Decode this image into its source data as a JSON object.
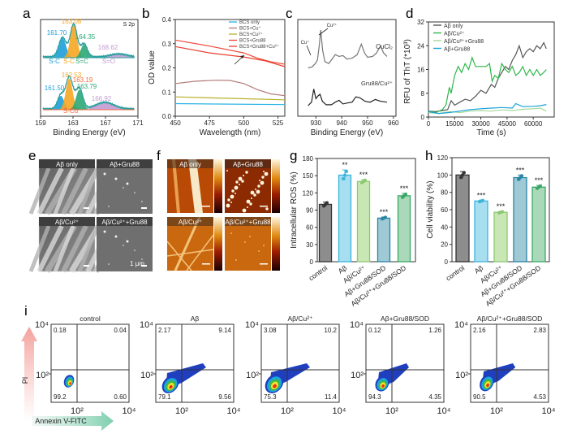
{
  "panel_labels": [
    "a",
    "b",
    "c",
    "d",
    "e",
    "f",
    "g",
    "h",
    "i"
  ],
  "chart_data": [
    {
      "panel": "a",
      "type": "line",
      "subtitle": "S 2p",
      "xlabel": "Binding Energy (eV)",
      "xlim": [
        159,
        171
      ],
      "xticks": [
        "159",
        "163",
        "167",
        "171"
      ],
      "envelope_color": "#2a9d9f",
      "spectra": [
        {
          "peaks": [
            {
              "center": 161.7,
              "label": "161.70",
              "species": "S-C",
              "color": "#1e9fd8",
              "height": 0.53,
              "width": 0.45
            },
            {
              "center": 163.08,
              "label": "163.08",
              "species": "S-C",
              "color": "#f5a623",
              "height": 0.9,
              "width": 0.42
            },
            {
              "center": 164.35,
              "label": "164.35",
              "species": "S=C",
              "color": "#2aa876",
              "height": 0.36,
              "width": 0.4
            },
            {
              "center": 168.62,
              "label": "168.62",
              "species": "S=O",
              "color": "#c39bd3",
              "height": 0.08,
              "width": 1.0
            }
          ]
        },
        {
          "peaks": [
            {
              "center": 161.5,
              "label": "161.50",
              "species": "",
              "color": "#1e9fd8",
              "height": 0.38,
              "width": 0.4
            },
            {
              "center": 162.53,
              "label": "162.53",
              "species": "",
              "color": "#f5a623",
              "height": 0.85,
              "width": 0.42
            },
            {
              "center": 163.19,
              "label": "163.19",
              "species": "S-Cu",
              "color": "#f26b3a",
              "height": 0.08,
              "width": 0.4
            },
            {
              "center": 163.79,
              "label": "163.79",
              "species": "",
              "color": "#2aa876",
              "height": 0.55,
              "width": 0.42
            },
            {
              "center": 166.92,
              "label": "166.92",
              "species": "",
              "color": "#c39bd3",
              "height": 0.18,
              "width": 1.1
            }
          ]
        }
      ]
    },
    {
      "panel": "b",
      "type": "line",
      "xlabel": "Wavelength (nm)",
      "ylabel": "OD value",
      "xlim": [
        450,
        530
      ],
      "ylim": [
        0,
        0.4
      ],
      "xticks": [
        450,
        475,
        500,
        525
      ],
      "yticks": [
        "0.0",
        "0.1",
        "0.2",
        "0.3",
        "0.4"
      ],
      "legend": "top-right",
      "series": [
        {
          "name": "BCS only",
          "color": "#2bb3e6",
          "x": [
            450,
            490,
            530
          ],
          "y": [
            0.052,
            0.05,
            0.048
          ]
        },
        {
          "name": "BCS+Cu⁺",
          "color": "#b47c78",
          "x": [
            450,
            465,
            480,
            490,
            500,
            510,
            520,
            530
          ],
          "y": [
            0.135,
            0.145,
            0.149,
            0.148,
            0.135,
            0.11,
            0.092,
            0.085
          ]
        },
        {
          "name": "BCS+Cu²⁺",
          "color": "#b8b02a",
          "x": [
            450,
            490,
            530
          ],
          "y": [
            0.08,
            0.074,
            0.068
          ]
        },
        {
          "name": "BCS+Gru88",
          "color": "#ef4a3a",
          "x": [
            450,
            475,
            500,
            510,
            520,
            530
          ],
          "y": [
            0.315,
            0.29,
            0.262,
            0.24,
            0.225,
            0.215
          ]
        },
        {
          "name": "BCS+Gru88+Cu²⁺",
          "color": "#e8402e",
          "x": [
            450,
            475,
            500,
            515,
            530
          ],
          "y": [
            0.288,
            0.262,
            0.245,
            0.23,
            0.205
          ]
        }
      ]
    },
    {
      "panel": "c",
      "type": "line",
      "xlabel": "Binding Energy (eV)",
      "xlim": [
        923,
        961
      ],
      "xticks": [
        930,
        940,
        950,
        960
      ],
      "annotations": [
        "Cu⁺",
        "Cu²⁺"
      ],
      "series": [
        {
          "name": "CuCl₂",
          "color": "#777777",
          "x": [
            927,
            928.5,
            929.8,
            930.6,
            931.3,
            931.9,
            932.6,
            933.5,
            935,
            936.5,
            937.5,
            939,
            940.5,
            942,
            944,
            946,
            947.6,
            948.8,
            950,
            952,
            953.5,
            955,
            956.2,
            957.5
          ],
          "y": [
            0.55,
            0.56,
            0.6,
            0.64,
            0.8,
            0.98,
            0.75,
            0.62,
            0.6,
            0.66,
            0.7,
            0.68,
            0.69,
            0.65,
            0.66,
            0.7,
            0.82,
            0.72,
            0.67,
            0.68,
            0.72,
            0.8,
            0.72,
            0.68
          ]
        },
        {
          "name": "Gru88/Cu²⁺",
          "color": "#222222",
          "x": [
            927,
            928.3,
            929.2,
            930,
            930.8,
            931.6,
            932.5,
            934,
            936,
            937.5,
            939,
            940.5,
            942,
            944,
            945.5,
            947,
            949,
            951,
            953,
            955,
            957.5
          ],
          "y": [
            0.12,
            0.16,
            0.31,
            0.2,
            0.23,
            0.25,
            0.17,
            0.13,
            0.13,
            0.16,
            0.18,
            0.14,
            0.15,
            0.16,
            0.22,
            0.21,
            0.17,
            0.16,
            0.19,
            0.17,
            0.16
          ]
        }
      ]
    },
    {
      "panel": "d",
      "type": "line",
      "xlabel": "Time (s)",
      "ylabel": "RFU of ThT (*10³)",
      "xlim": [
        0,
        72000
      ],
      "ylim": [
        0,
        32
      ],
      "xticks": [
        0,
        15000,
        30000,
        45000,
        60000
      ],
      "yticks": [
        0,
        8,
        16,
        24,
        32
      ],
      "legend": "top-left",
      "series": [
        {
          "name": "Aβ only",
          "color": "#555555",
          "x": [
            0,
            4000,
            8000,
            11000,
            13000,
            15000,
            18000,
            21000,
            24000,
            27000,
            30000,
            33000,
            36000,
            38000,
            40000,
            42000,
            44000,
            46000,
            48000,
            50000,
            52000,
            54000,
            56000,
            58000,
            60000,
            62000,
            64000,
            66000,
            67500
          ],
          "y": [
            2,
            1.8,
            2.2,
            2.5,
            5.5,
            4,
            5,
            6,
            5.5,
            7,
            9,
            8,
            11,
            10,
            13,
            15,
            17,
            16,
            19,
            21,
            24,
            20,
            22,
            23,
            22,
            24,
            23,
            25,
            23
          ]
        },
        {
          "name": "Aβ/Cu²⁺",
          "color": "#2db84a",
          "x": [
            0,
            4000,
            8000,
            10000,
            12000,
            13000,
            15000,
            17000,
            19000,
            21000,
            23000,
            25000,
            27000,
            30000,
            33000,
            35000,
            36500,
            38000,
            40000,
            42000,
            44000,
            46000,
            48000,
            50000,
            52000,
            54000,
            56000,
            58000,
            60000,
            62000,
            64000,
            66000,
            67500
          ],
          "y": [
            2,
            1.5,
            2.5,
            4,
            10,
            8,
            14,
            17,
            15,
            18,
            16,
            20,
            17,
            17,
            17,
            18,
            12,
            14,
            13,
            18,
            16,
            15,
            17,
            14,
            15,
            17,
            14,
            16,
            14,
            16,
            14,
            15,
            16
          ]
        },
        {
          "name": "Aβ/Cu²⁺+Gru88",
          "color": "#a6d99a",
          "x": [
            0,
            6000,
            12000,
            18000,
            24000,
            30000,
            36000,
            42000,
            48000,
            54000,
            60000,
            64000,
            67500
          ],
          "y": [
            1.5,
            1.2,
            1.8,
            1.5,
            2,
            2.2,
            2,
            2.4,
            2.2,
            2.6,
            2.8,
            3,
            2
          ]
        },
        {
          "name": "Aβ+Gru88",
          "color": "#1aa3d9",
          "x": [
            0,
            6000,
            12000,
            18000,
            24000,
            30000,
            36000,
            42000,
            48000,
            50000,
            54000,
            60000,
            64000,
            67500
          ],
          "y": [
            1.8,
            1.2,
            1.5,
            2,
            2.5,
            2.8,
            3,
            3.2,
            3,
            4.5,
            3.5,
            3.6,
            3.8,
            4.2
          ]
        }
      ]
    },
    {
      "panel": "g",
      "type": "bar",
      "ylabel": "Intracellular ROS (%)",
      "ylim": [
        0,
        180
      ],
      "yticks": [
        0,
        30,
        60,
        90,
        120,
        150,
        180
      ],
      "categories": [
        "control",
        "Aβ",
        "Aβ/Cu²⁺",
        "Aβ+Gru88/SOD",
        "Aβ/Cu²⁺+Gru88/SOD"
      ],
      "values": [
        100,
        151,
        140,
        76,
        115
      ],
      "errors": [
        4,
        9,
        3,
        2,
        4
      ],
      "significance": [
        "",
        "**",
        "***",
        "***",
        "***"
      ],
      "colors": [
        [
          "#8d8d8d",
          "#333333"
        ],
        [
          "#a7dff1",
          "#3bb4dc"
        ],
        [
          "#c9e7b4",
          "#8cc870"
        ],
        [
          "#9ec9d5",
          "#2a85a5"
        ],
        [
          "#a9d9b9",
          "#3aa868"
        ]
      ]
    },
    {
      "panel": "h",
      "type": "bar",
      "ylabel": "Cell viability (%)",
      "ylim": [
        0,
        120
      ],
      "yticks": [
        0,
        20,
        40,
        60,
        80,
        100,
        120
      ],
      "categories": [
        "control",
        "Aβ",
        "Aβ/Cu²⁺",
        "Aβ+Gru88/SOD",
        "Aβ/Cu²⁺+Gru88/SOD"
      ],
      "values": [
        100,
        70,
        57,
        97,
        86
      ],
      "errors": [
        4,
        1,
        1,
        3,
        2
      ],
      "significance": [
        "",
        "***",
        "***",
        "***",
        "***"
      ],
      "colors": [
        [
          "#8d8d8d",
          "#333333"
        ],
        [
          "#a7dff1",
          "#3bb4dc"
        ],
        [
          "#c9e7b4",
          "#8cc870"
        ],
        [
          "#9ec9d5",
          "#2a85a5"
        ],
        [
          "#a9d9b9",
          "#3aa868"
        ]
      ]
    },
    {
      "panel": "i",
      "type": "scatter",
      "xlabel": "Annexin V-FITC",
      "ylabel": "PI",
      "scale": "log",
      "ticks": [
        "10²",
        "10⁴"
      ],
      "plots": [
        {
          "title": "control",
          "quadrants": {
            "ul": "0.18",
            "ur": "0.04",
            "ll": "99.2",
            "lr": "0.60"
          }
        },
        {
          "title": "Aβ",
          "quadrants": {
            "ul": "2.17",
            "ur": "9.14",
            "ll": "79.1",
            "lr": "9.56"
          }
        },
        {
          "title": "Aβ/Cu²⁺",
          "quadrants": {
            "ul": "3.08",
            "ur": "10.2",
            "ll": "75.3",
            "lr": "11.4"
          }
        },
        {
          "title": "Aβ+Gru88/SOD",
          "quadrants": {
            "ul": "0.12",
            "ur": "1.26",
            "ll": "94.3",
            "lr": "4.35"
          }
        },
        {
          "title": "Aβ/Cu²⁺+Gru88/SOD",
          "quadrants": {
            "ul": "2.16",
            "ur": "2.83",
            "ll": "90.5",
            "lr": "4.53"
          }
        }
      ]
    }
  ],
  "images": {
    "e": {
      "type": "SEM",
      "tiles": [
        "Aβ only",
        "Aβ+Gru88",
        "Aβ/Cu²⁺",
        "Aβ/Cu²⁺+Gru88"
      ],
      "scale_bar": "1 μm"
    },
    "f": {
      "type": "AFM",
      "tiles": [
        "Aβ only",
        "Aβ+Gru88",
        "Aβ/Cu²⁺",
        "Aβ/Cu²⁺+Gru88"
      ]
    }
  }
}
